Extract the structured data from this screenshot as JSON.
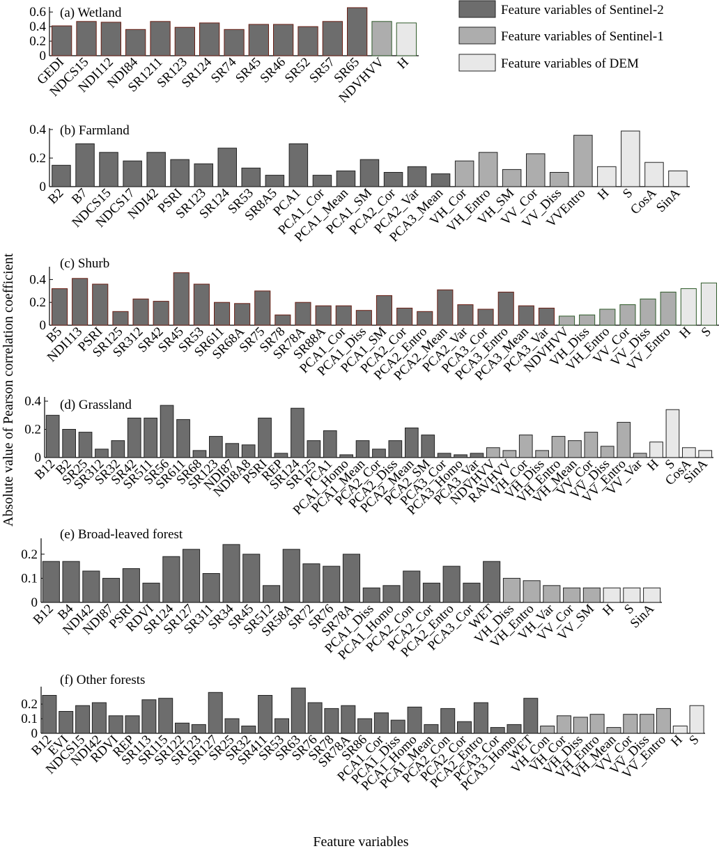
{
  "figure": {
    "ylabel": "Absolute value of Pearson correlation coefficient",
    "xlabel": "Feature variables"
  },
  "legend": [
    {
      "label": "Feature variables of Sentinel-2",
      "color": "#6d6d6d"
    },
    {
      "label": "Feature variables of Sentinel-1",
      "color": "#adadad"
    },
    {
      "label": "Feature variables of DEM",
      "color": "#e8e8e8"
    }
  ],
  "colors": {
    "S2": "#6d6d6d",
    "S1": "#adadad",
    "DEM": "#e8e8e8",
    "outline": "#222222",
    "outline_red": "#6a1f14",
    "outline_green": "#2f5a2a"
  },
  "chart_data": [
    {
      "type": "bar",
      "title": "(a) Wetland",
      "ylim": [
        0,
        0.65
      ],
      "yticks": [
        0,
        0.2,
        0.4,
        0.6
      ],
      "ytick_labels": [
        "0",
        "0.2",
        "0.4",
        "0.6"
      ],
      "categories": [
        "GEDI",
        "NDCS15",
        "NDI112",
        "NDI84",
        "SR1211",
        "SR123",
        "SR124",
        "SR74",
        "SR45",
        "SR46",
        "SR52",
        "SR57",
        "SR65",
        "NDVHVV",
        "H"
      ],
      "values": [
        0.41,
        0.47,
        0.46,
        0.36,
        0.47,
        0.39,
        0.45,
        0.36,
        0.43,
        0.43,
        0.4,
        0.47,
        0.66,
        0.47,
        0.45
      ],
      "groups": [
        "S2",
        "S2",
        "S2",
        "S2",
        "S2",
        "S2",
        "S2",
        "S2",
        "S2",
        "S2",
        "S2",
        "S2",
        "S2",
        "S1",
        "DEM"
      ]
    },
    {
      "type": "bar",
      "title": "(b) Farmland",
      "ylim": [
        0,
        0.4
      ],
      "yticks": [
        0,
        0.2,
        0.4
      ],
      "ytick_labels": [
        "0",
        "0.2",
        "0.4"
      ],
      "categories": [
        "B2",
        "B7",
        "NDCS15",
        "NDCS17",
        "NDI42",
        "PSRI",
        "SR123",
        "SR124",
        "SR53",
        "SR8A5",
        "PCA1",
        "PCA1_Cor",
        "PCA1_Mean",
        "PCA1_SM",
        "PCA2_Cor",
        "PCA2_Var",
        "PCA3_Mean",
        "VH_Cor",
        "VH_Entro",
        "VH_SM",
        "VV_Cor",
        "VV_Diss",
        "VVEntro",
        "H",
        "S",
        "CosA",
        "SinA"
      ],
      "values": [
        0.15,
        0.3,
        0.24,
        0.18,
        0.24,
        0.19,
        0.16,
        0.27,
        0.13,
        0.08,
        0.3,
        0.08,
        0.11,
        0.19,
        0.1,
        0.14,
        0.09,
        0.18,
        0.24,
        0.12,
        0.23,
        0.1,
        0.36,
        0.14,
        0.39,
        0.17,
        0.11
      ],
      "groups": [
        "S2",
        "S2",
        "S2",
        "S2",
        "S2",
        "S2",
        "S2",
        "S2",
        "S2",
        "S2",
        "S2",
        "S2",
        "S2",
        "S2",
        "S2",
        "S2",
        "S2",
        "S1",
        "S1",
        "S1",
        "S1",
        "S1",
        "S1",
        "DEM",
        "DEM",
        "DEM",
        "DEM"
      ]
    },
    {
      "type": "bar",
      "title": "(c) Shurb",
      "ylim": [
        0,
        0.5
      ],
      "yticks": [
        0,
        0.2,
        0.4
      ],
      "ytick_labels": [
        "0",
        "0.2",
        "0.4"
      ],
      "categories": [
        "B5",
        "NDI113",
        "PSRI",
        "SR125",
        "SR312",
        "SR42",
        "SR45",
        "SR53",
        "SR611",
        "SR68A",
        "SR75",
        "SR78",
        "SR78A",
        "SR88A",
        "PCA1_Cor",
        "PCA1_Diss",
        "PCA1_SM",
        "PCA2_Cor",
        "PCA2_Entro",
        "PCA2_Mean",
        "PCA2_Var",
        "PCA3_Cor",
        "PCA3_Entro",
        "PCA3_Mean",
        "PCA3_Var",
        "NDVHVV",
        "VH_Diss",
        "VH_Entro",
        "VV_Cor",
        "VV_Diss",
        "VV_Entro",
        "H",
        "S"
      ],
      "values": [
        0.32,
        0.41,
        0.36,
        0.12,
        0.23,
        0.21,
        0.46,
        0.36,
        0.2,
        0.19,
        0.3,
        0.09,
        0.2,
        0.17,
        0.17,
        0.13,
        0.26,
        0.15,
        0.12,
        0.31,
        0.18,
        0.14,
        0.29,
        0.17,
        0.15,
        0.08,
        0.09,
        0.14,
        0.18,
        0.23,
        0.29,
        0.32,
        0.37
      ],
      "groups": [
        "S2",
        "S2",
        "S2",
        "S2",
        "S2",
        "S2",
        "S2",
        "S2",
        "S2",
        "S2",
        "S2",
        "S2",
        "S2",
        "S2",
        "S2",
        "S2",
        "S2",
        "S2",
        "S2",
        "S2",
        "S2",
        "S2",
        "S2",
        "S2",
        "S2",
        "S1",
        "S1",
        "S1",
        "S1",
        "S1",
        "S1",
        "DEM",
        "DEM"
      ]
    },
    {
      "type": "bar",
      "title": "(d) Grassland",
      "ylim": [
        0,
        0.42
      ],
      "yticks": [
        0,
        0.2,
        0.4
      ],
      "ytick_labels": [
        "0",
        "0.2",
        "0.4"
      ],
      "categories": [
        "B12",
        "B2",
        "SR25",
        "SR312",
        "SR32",
        "SR42",
        "SR511",
        "SR56",
        "SR611",
        "SR68",
        "SR123",
        "NDI87",
        "NDI8A8",
        "PSRI",
        "REP",
        "SR124",
        "SR125",
        "PCA1",
        "PCA1_Homo",
        "PCA1_Mean",
        "PCA2_Cor",
        "PCA2_Diss",
        "PCA2_Mean",
        "PCA2_SM",
        "PCA3_Cor",
        "PCA3_Homo",
        "PCA3_Var",
        "NDVHVV",
        "RAVHVV",
        "VH_Cor",
        "VH_Diss",
        "VH_Entro",
        "VH_Mean",
        "VV_Cor",
        "VV_Diss",
        "VV_Entro",
        "VV_Var",
        "H",
        "S",
        "CosA",
        "SinA"
      ],
      "values": [
        0.3,
        0.2,
        0.18,
        0.06,
        0.12,
        0.28,
        0.28,
        0.37,
        0.27,
        0.05,
        0.15,
        0.1,
        0.09,
        0.28,
        0.03,
        0.35,
        0.12,
        0.19,
        0.02,
        0.12,
        0.06,
        0.12,
        0.21,
        0.16,
        0.03,
        0.02,
        0.03,
        0.07,
        0.05,
        0.16,
        0.05,
        0.15,
        0.12,
        0.18,
        0.08,
        0.25,
        0.03,
        0.11,
        0.34,
        0.07,
        0.05
      ],
      "groups": [
        "S2",
        "S2",
        "S2",
        "S2",
        "S2",
        "S2",
        "S2",
        "S2",
        "S2",
        "S2",
        "S2",
        "S2",
        "S2",
        "S2",
        "S2",
        "S2",
        "S2",
        "S2",
        "S2",
        "S2",
        "S2",
        "S2",
        "S2",
        "S2",
        "S2",
        "S2",
        "S2",
        "S1",
        "S1",
        "S1",
        "S1",
        "S1",
        "S1",
        "S1",
        "S1",
        "S1",
        "S1",
        "DEM",
        "DEM",
        "DEM",
        "DEM"
      ]
    },
    {
      "type": "bar",
      "title": "(e) Broad-leaved forest",
      "ylim": [
        0,
        0.26
      ],
      "yticks": [
        0,
        0.1,
        0.2
      ],
      "ytick_labels": [
        "0",
        "0.1",
        "0.2"
      ],
      "categories": [
        "B12",
        "B4",
        "NDI42",
        "NDI87",
        "PSRI",
        "RDVI",
        "SR124",
        "SR127",
        "SR311",
        "SR34",
        "SR45",
        "SR512",
        "SR58A",
        "SR72",
        "SR76",
        "SR78A",
        "PCA1_Diss",
        "PCA1_Homo",
        "PCA2_Con",
        "PCA2_Cor",
        "PCA2_Entro",
        "PCA3_Cor",
        "WET",
        "VH_Diss",
        "VH_Entro",
        "VH_Var",
        "VV_Cor",
        "VV_SM",
        "H",
        "S",
        "SinA"
      ],
      "values": [
        0.17,
        0.17,
        0.13,
        0.1,
        0.14,
        0.08,
        0.19,
        0.22,
        0.12,
        0.24,
        0.2,
        0.07,
        0.22,
        0.16,
        0.15,
        0.2,
        0.06,
        0.07,
        0.13,
        0.08,
        0.15,
        0.08,
        0.17,
        0.1,
        0.09,
        0.07,
        0.06,
        0.06,
        0.06,
        0.06,
        0.06
      ],
      "groups": [
        "S2",
        "S2",
        "S2",
        "S2",
        "S2",
        "S2",
        "S2",
        "S2",
        "S2",
        "S2",
        "S2",
        "S2",
        "S2",
        "S2",
        "S2",
        "S2",
        "S2",
        "S2",
        "S2",
        "S2",
        "S2",
        "S2",
        "S2",
        "S1",
        "S1",
        "S1",
        "S1",
        "S1",
        "DEM",
        "DEM",
        "DEM"
      ]
    },
    {
      "type": "bar",
      "title": "(f) Other forests",
      "ylim": [
        0,
        0.31
      ],
      "yticks": [
        0,
        0.1,
        0.2
      ],
      "ytick_labels": [
        "0",
        "0.1",
        "0.2"
      ],
      "categories": [
        "B12",
        "EVI",
        "NDCS15",
        "NDI42",
        "RDVI",
        "REP",
        "SR113",
        "SR115",
        "SR122",
        "SR123",
        "SR127",
        "SR25",
        "SR32",
        "SR411",
        "SR53",
        "SR63",
        "SR76",
        "SR78",
        "SR78A",
        "SR86",
        "PCA1_Cor",
        "PCA1_Diss",
        "PCA1_Homo",
        "PCA1_Mean",
        "PCA2_Con",
        "PCA2_Cor",
        "PCA2_Entro",
        "PCA3_Cor",
        "PCA3_Homo",
        "WET",
        "VH_Con",
        "VH_Cor",
        "VH_Diss",
        "VH_Entro",
        "VH_Mean",
        "VV_Cor",
        "VV_Diss",
        "VV_Entro",
        "H",
        "S"
      ],
      "values": [
        0.26,
        0.15,
        0.19,
        0.21,
        0.12,
        0.12,
        0.23,
        0.24,
        0.07,
        0.06,
        0.28,
        0.1,
        0.05,
        0.26,
        0.1,
        0.31,
        0.21,
        0.17,
        0.19,
        0.1,
        0.14,
        0.09,
        0.18,
        0.06,
        0.17,
        0.08,
        0.21,
        0.04,
        0.06,
        0.24,
        0.05,
        0.12,
        0.11,
        0.13,
        0.04,
        0.13,
        0.13,
        0.17,
        0.05,
        0.19
      ],
      "groups": [
        "S2",
        "S2",
        "S2",
        "S2",
        "S2",
        "S2",
        "S2",
        "S2",
        "S2",
        "S2",
        "S2",
        "S2",
        "S2",
        "S2",
        "S2",
        "S2",
        "S2",
        "S2",
        "S2",
        "S2",
        "S2",
        "S2",
        "S2",
        "S2",
        "S2",
        "S2",
        "S2",
        "S2",
        "S2",
        "S2",
        "S1",
        "S1",
        "S1",
        "S1",
        "S1",
        "S1",
        "S1",
        "S1",
        "DEM",
        "DEM"
      ]
    }
  ]
}
